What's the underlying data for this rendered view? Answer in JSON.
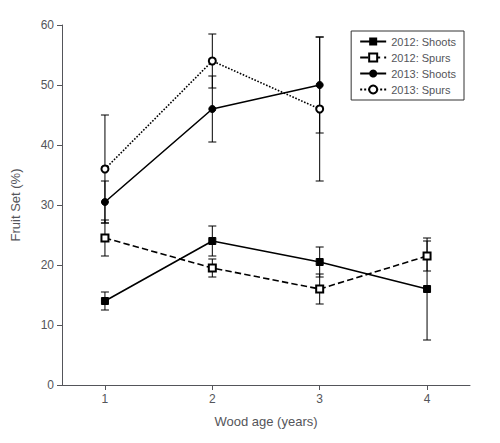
{
  "chart_data": {
    "type": "line",
    "xlabel": "Wood age (years)",
    "ylabel": "Fruit Set (%)",
    "x": [
      1,
      2,
      3,
      4
    ],
    "series": [
      {
        "name": "2012: Shoots",
        "values": [
          14.0,
          24.0,
          20.5,
          16.0
        ],
        "errors": [
          1.5,
          2.5,
          2.5,
          8.5
        ],
        "marker": "square",
        "line_style": "solid"
      },
      {
        "name": "2012: Spurs",
        "values": [
          24.5,
          19.5,
          16.0,
          21.5
        ],
        "errors": [
          3.0,
          1.5,
          2.5,
          2.5
        ],
        "marker": "open_square",
        "line_style": "dashed"
      },
      {
        "name": "2013: Shoots",
        "values": [
          30.5,
          46.0,
          50.0,
          null
        ],
        "errors": [
          3.5,
          5.5,
          8.0,
          null
        ],
        "marker": "circle",
        "line_style": "solid"
      },
      {
        "name": "2013: Spurs",
        "values": [
          36.0,
          54.0,
          46.0,
          null
        ],
        "errors": [
          9.0,
          4.5,
          12.0,
          null
        ],
        "marker": "open_circle",
        "line_style": "dotted"
      }
    ],
    "xlim": [
      0.6,
      4.4
    ],
    "xticks": [
      1,
      2,
      3,
      4
    ],
    "ylim": [
      0,
      60
    ],
    "yticks": [
      0,
      10,
      20,
      30,
      40,
      50,
      60
    ],
    "grid": false,
    "legend": "upper right",
    "color": "black"
  }
}
